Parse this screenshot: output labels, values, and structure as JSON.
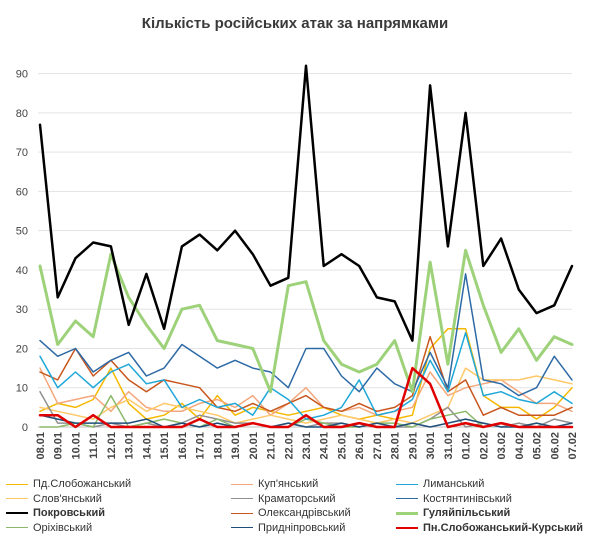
{
  "chart_data": {
    "type": "line",
    "title": "Кількість російських атак за напрямками",
    "xlabel": "",
    "ylabel": "",
    "ylim": [
      0,
      95
    ],
    "yticks": [
      0,
      10,
      20,
      30,
      40,
      50,
      60,
      70,
      80,
      90
    ],
    "grid": "horizontal",
    "legend_position": "bottom",
    "categories": [
      "08.01",
      "09.01",
      "10.01",
      "11.01",
      "12.01",
      "13.01",
      "14.01",
      "15.01",
      "16.01",
      "17.01",
      "18.01",
      "19.01",
      "20.01",
      "21.01",
      "22.01",
      "23.01",
      "24.01",
      "25.01",
      "26.01",
      "27.01",
      "28.01",
      "29.01",
      "30.01",
      "31.01",
      "01.02",
      "02.02",
      "03.02",
      "04.02",
      "05.02",
      "06.02",
      "07.02"
    ],
    "series": [
      {
        "name": "Пд.Слобожанський",
        "color": "#f5b800",
        "width": 1.5,
        "values": [
          4,
          6,
          5,
          7,
          15,
          6,
          2,
          3,
          6,
          2,
          8,
          3,
          5,
          4,
          3,
          4,
          5,
          3,
          2,
          3,
          2,
          3,
          20,
          25,
          25,
          8,
          5,
          5,
          2,
          5,
          10
        ]
      },
      {
        "name": "Куп'янський",
        "color": "#f4a77c",
        "width": 1.5,
        "values": [
          15,
          6,
          7,
          8,
          4,
          9,
          5,
          4,
          4,
          6,
          7,
          5,
          8,
          3,
          6,
          10,
          5,
          4,
          5,
          3,
          4,
          5,
          14,
          8,
          10,
          11,
          12,
          9,
          6,
          6,
          4
        ]
      },
      {
        "name": "Лиманський",
        "color": "#1fa7d8",
        "width": 1.5,
        "values": [
          18,
          10,
          14,
          10,
          14,
          16,
          11,
          12,
          5,
          7,
          5,
          6,
          3,
          10,
          7,
          2,
          3,
          5,
          12,
          3,
          4,
          7,
          17,
          9,
          24,
          8,
          9,
          7,
          6,
          9,
          6
        ]
      },
      {
        "name": "Слов'янський",
        "color": "#ffc869",
        "width": 1.5,
        "values": [
          5,
          4,
          3,
          2,
          5,
          7,
          4,
          6,
          5,
          4,
          3,
          1,
          2,
          3,
          2,
          1,
          2,
          3,
          2,
          1,
          2,
          1,
          3,
          5,
          15,
          12,
          12,
          12,
          13,
          12,
          11
        ]
      },
      {
        "name": "Краматорський",
        "color": "#909090",
        "width": 1.5,
        "values": [
          9,
          1,
          1,
          0,
          1,
          0,
          1,
          0,
          1,
          3,
          2,
          1,
          1,
          0,
          1,
          0,
          1,
          1,
          0,
          1,
          0,
          0,
          2,
          5,
          0,
          1,
          0,
          1,
          0,
          2,
          1
        ]
      },
      {
        "name": "Костянтинівський",
        "color": "#2e6aa5",
        "width": 1.5,
        "values": [
          22,
          18,
          20,
          14,
          17,
          19,
          13,
          15,
          21,
          18,
          15,
          17,
          15,
          14,
          10,
          20,
          20,
          13,
          9,
          15,
          11,
          9,
          19,
          10,
          39,
          12,
          11,
          8,
          10,
          18,
          12
        ]
      },
      {
        "name": "Покровський",
        "color": "#000000",
        "width": 2.5,
        "values": [
          77,
          33,
          43,
          47,
          46,
          26,
          39,
          25,
          46,
          49,
          45,
          50,
          44,
          36,
          38,
          92,
          41,
          44,
          41,
          33,
          32,
          22,
          87,
          46,
          80,
          41,
          48,
          35,
          29,
          31,
          41
        ]
      },
      {
        "name": "Олександрівський",
        "color": "#c8561c",
        "width": 1.5,
        "values": [
          14,
          12,
          20,
          13,
          17,
          12,
          9,
          12,
          11,
          10,
          5,
          4,
          6,
          4,
          6,
          8,
          5,
          4,
          6,
          4,
          5,
          8,
          23,
          9,
          12,
          3,
          5,
          3,
          3,
          3,
          5
        ]
      },
      {
        "name": "Гуляйпільський",
        "color": "#9ed27a",
        "width": 3,
        "values": [
          41,
          21,
          27,
          23,
          44,
          33,
          26,
          20,
          30,
          31,
          22,
          21,
          20,
          9,
          36,
          37,
          22,
          16,
          14,
          16,
          22,
          9,
          42,
          16,
          45,
          31,
          19,
          25,
          17,
          23,
          21
        ]
      },
      {
        "name": "Оріхівський",
        "color": "#8bb96a",
        "width": 1.5,
        "values": [
          0,
          0,
          1,
          0,
          8,
          0,
          1,
          2,
          1,
          0,
          2,
          0,
          1,
          0,
          0,
          2,
          1,
          0,
          0,
          1,
          1,
          0,
          2,
          3,
          4,
          0,
          1,
          0,
          1,
          0,
          0
        ]
      },
      {
        "name": "Придніпровський",
        "color": "#1f4e79",
        "width": 1.5,
        "values": [
          3,
          2,
          1,
          1,
          1,
          1,
          2,
          0,
          1,
          0,
          1,
          0,
          1,
          0,
          1,
          0,
          0,
          1,
          0,
          1,
          0,
          1,
          0,
          1,
          2,
          1,
          0,
          0,
          1,
          0,
          1
        ]
      },
      {
        "name": "Пн.Слобожанський-Курський",
        "color": "#e00000",
        "width": 2.5,
        "values": [
          3,
          3,
          0,
          3,
          0,
          0,
          0,
          0,
          0,
          2,
          0,
          0,
          1,
          0,
          0,
          3,
          0,
          0,
          1,
          0,
          0,
          15,
          11,
          0,
          1,
          0,
          1,
          0,
          0,
          0,
          0
        ]
      }
    ]
  }
}
